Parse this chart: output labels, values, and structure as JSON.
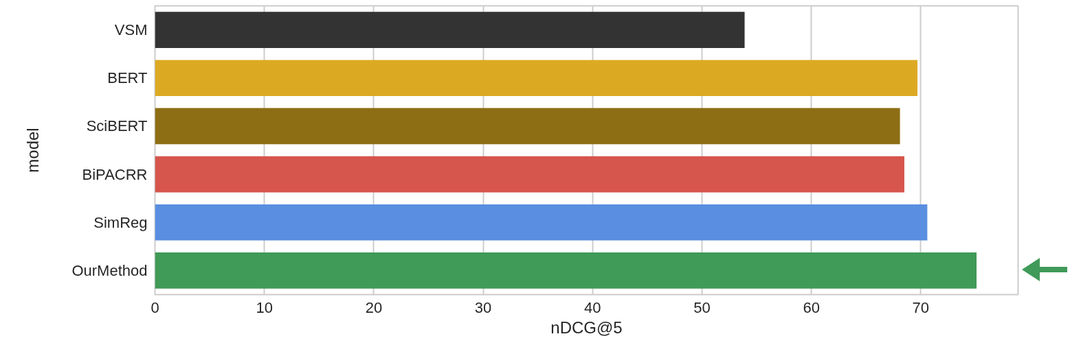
{
  "chart_data": {
    "type": "bar",
    "orientation": "horizontal",
    "xlabel": "nDCG@5",
    "ylabel": "model",
    "categories": [
      "VSM",
      "BERT",
      "SciBERT",
      "BiPACRR",
      "SimReg",
      "OurMethod"
    ],
    "values": [
      53.9,
      69.7,
      68.1,
      68.5,
      70.6,
      75.1
    ],
    "colors": [
      "#333333",
      "#dcaa22",
      "#8d6e14",
      "#d6554c",
      "#5a8ee0",
      "#409a58"
    ],
    "xlim": [
      0,
      78.9
    ],
    "xticks": [
      0,
      10,
      20,
      30,
      40,
      50,
      60,
      70
    ],
    "grid": "x"
  }
}
